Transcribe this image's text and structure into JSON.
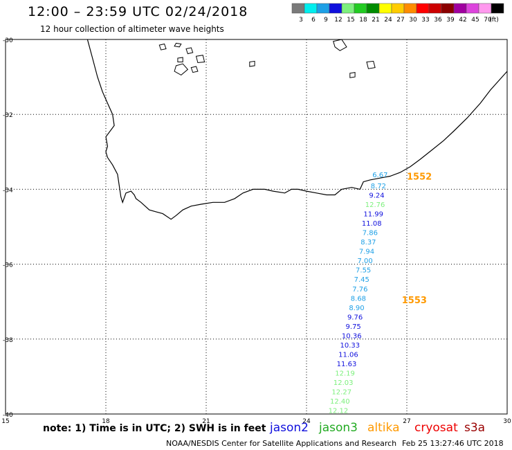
{
  "header": {
    "title": "12:00 – 23:59 UTC 02/24/2018",
    "subtitle": "12 hour collection of altimeter wave heights"
  },
  "colorbar": {
    "unit_label": "(ft)",
    "bins": [
      {
        "label": "3",
        "color": "#7a7a7a"
      },
      {
        "label": "6",
        "color": "#00eeee"
      },
      {
        "label": "9",
        "color": "#1ea0e6"
      },
      {
        "label": "12",
        "color": "#1010dd"
      },
      {
        "label": "15",
        "color": "#7df07d"
      },
      {
        "label": "18",
        "color": "#22cc22"
      },
      {
        "label": "21",
        "color": "#008c00"
      },
      {
        "label": "24",
        "color": "#ffff00"
      },
      {
        "label": "27",
        "color": "#ffcc00"
      },
      {
        "label": "30",
        "color": "#ff8c00"
      },
      {
        "label": "33",
        "color": "#ff0000"
      },
      {
        "label": "36",
        "color": "#cc0000"
      },
      {
        "label": "39",
        "color": "#8b0000"
      },
      {
        "label": "42",
        "color": "#a000a0"
      },
      {
        "label": "45",
        "color": "#dd44dd"
      },
      {
        "label": "70",
        "color": "#ff99ee"
      },
      {
        "label": "",
        "color": "#000000"
      }
    ]
  },
  "map": {
    "lon_range": [
      15,
      30
    ],
    "lat_range": [
      -40,
      -30
    ],
    "lon_ticks": [
      15,
      18,
      21,
      24,
      27,
      30
    ],
    "lat_ticks": [
      -30,
      -32,
      -34,
      -36,
      -38,
      -40
    ],
    "lon_tick_labels": [
      "15",
      "18",
      "21",
      "24",
      "27",
      "30"
    ],
    "lat_tick_labels": [
      "-30",
      "-32",
      "-34",
      "-36",
      "-38",
      "-40"
    ],
    "grid": true,
    "pass_labels": [
      {
        "text": "1552",
        "lon": 27.0,
        "lat": -33.65,
        "color": "#ff9900"
      },
      {
        "text": "1553",
        "lon": 26.85,
        "lat": -36.95,
        "color": "#ff9900"
      }
    ],
    "track": [
      {
        "lon": 26.2,
        "lat": -33.6,
        "value": "6.67",
        "color": "#1ea0e6"
      },
      {
        "lon": 26.15,
        "lat": -33.9,
        "value": "8.72",
        "color": "#1ea0e6"
      },
      {
        "lon": 26.1,
        "lat": -34.15,
        "value": "9.24",
        "color": "#1010dd"
      },
      {
        "lon": 26.05,
        "lat": -34.4,
        "value": "12.76",
        "color": "#7df07d"
      },
      {
        "lon": 26.0,
        "lat": -34.65,
        "value": "11.99",
        "color": "#1010dd"
      },
      {
        "lon": 25.95,
        "lat": -34.9,
        "value": "11.08",
        "color": "#1010dd"
      },
      {
        "lon": 25.9,
        "lat": -35.15,
        "value": "7.86",
        "color": "#1ea0e6"
      },
      {
        "lon": 25.85,
        "lat": -35.4,
        "value": "8.37",
        "color": "#1ea0e6"
      },
      {
        "lon": 25.8,
        "lat": -35.65,
        "value": "7.94",
        "color": "#1ea0e6"
      },
      {
        "lon": 25.75,
        "lat": -35.9,
        "value": "7.00",
        "color": "#1ea0e6"
      },
      {
        "lon": 25.7,
        "lat": -36.15,
        "value": "7.55",
        "color": "#1ea0e6"
      },
      {
        "lon": 25.65,
        "lat": -36.4,
        "value": "7.45",
        "color": "#1ea0e6"
      },
      {
        "lon": 25.6,
        "lat": -36.65,
        "value": "7.76",
        "color": "#1ea0e6"
      },
      {
        "lon": 25.55,
        "lat": -36.9,
        "value": "8.68",
        "color": "#1ea0e6"
      },
      {
        "lon": 25.5,
        "lat": -37.15,
        "value": "8.90",
        "color": "#1ea0e6"
      },
      {
        "lon": 25.45,
        "lat": -37.4,
        "value": "9.76",
        "color": "#1010dd"
      },
      {
        "lon": 25.4,
        "lat": -37.65,
        "value": "9.75",
        "color": "#1010dd"
      },
      {
        "lon": 25.35,
        "lat": -37.9,
        "value": "10.36",
        "color": "#1010dd"
      },
      {
        "lon": 25.3,
        "lat": -38.15,
        "value": "10.33",
        "color": "#1010dd"
      },
      {
        "lon": 25.25,
        "lat": -38.4,
        "value": "11.06",
        "color": "#1010dd"
      },
      {
        "lon": 25.2,
        "lat": -38.65,
        "value": "11.63",
        "color": "#1010dd"
      },
      {
        "lon": 25.15,
        "lat": -38.9,
        "value": "12.19",
        "color": "#7df07d"
      },
      {
        "lon": 25.1,
        "lat": -39.15,
        "value": "12.03",
        "color": "#7df07d"
      },
      {
        "lon": 25.05,
        "lat": -39.4,
        "value": "12.27",
        "color": "#7df07d"
      },
      {
        "lon": 25.0,
        "lat": -39.65,
        "value": "12.40",
        "color": "#7df07d"
      },
      {
        "lon": 24.95,
        "lat": -39.9,
        "value": "12.12",
        "color": "#7df07d"
      }
    ],
    "coastline": [
      [
        17.45,
        -30.0
      ],
      [
        17.6,
        -30.5
      ],
      [
        17.75,
        -31.0
      ],
      [
        17.9,
        -31.4
      ],
      [
        18.05,
        -31.7
      ],
      [
        18.2,
        -32.0
      ],
      [
        18.25,
        -32.3
      ],
      [
        18.0,
        -32.6
      ],
      [
        18.05,
        -32.85
      ],
      [
        18.0,
        -33.0
      ],
      [
        18.05,
        -33.15
      ],
      [
        18.2,
        -33.35
      ],
      [
        18.35,
        -33.6
      ],
      [
        18.4,
        -33.9
      ],
      [
        18.45,
        -34.2
      ],
      [
        18.5,
        -34.35
      ],
      [
        18.6,
        -34.1
      ],
      [
        18.75,
        -34.05
      ],
      [
        18.85,
        -34.15
      ],
      [
        18.9,
        -34.25
      ],
      [
        19.05,
        -34.35
      ],
      [
        19.3,
        -34.55
      ],
      [
        19.5,
        -34.6
      ],
      [
        19.7,
        -34.65
      ],
      [
        19.95,
        -34.8
      ],
      [
        20.1,
        -34.7
      ],
      [
        20.3,
        -34.55
      ],
      [
        20.55,
        -34.45
      ],
      [
        20.85,
        -34.4
      ],
      [
        21.2,
        -34.35
      ],
      [
        21.55,
        -34.35
      ],
      [
        21.85,
        -34.25
      ],
      [
        22.1,
        -34.1
      ],
      [
        22.4,
        -34.0
      ],
      [
        22.75,
        -34.0
      ],
      [
        23.0,
        -34.05
      ],
      [
        23.35,
        -34.1
      ],
      [
        23.55,
        -34.0
      ],
      [
        23.75,
        -34.0
      ],
      [
        24.0,
        -34.05
      ],
      [
        24.3,
        -34.1
      ],
      [
        24.6,
        -34.15
      ],
      [
        24.85,
        -34.15
      ],
      [
        25.05,
        -34.0
      ],
      [
        25.35,
        -33.95
      ],
      [
        25.6,
        -34.0
      ],
      [
        25.7,
        -33.8
      ],
      [
        25.9,
        -33.75
      ],
      [
        26.2,
        -33.7
      ],
      [
        26.5,
        -33.65
      ],
      [
        26.8,
        -33.55
      ],
      [
        27.1,
        -33.4
      ],
      [
        27.4,
        -33.2
      ],
      [
        27.75,
        -32.95
      ],
      [
        28.1,
        -32.7
      ],
      [
        28.4,
        -32.45
      ],
      [
        28.8,
        -32.1
      ],
      [
        29.2,
        -31.7
      ],
      [
        29.5,
        -31.35
      ],
      [
        29.75,
        -31.1
      ],
      [
        29.9,
        -30.95
      ],
      [
        30.0,
        -30.85
      ]
    ],
    "islands": [
      [
        [
          19.6,
          -30.15
        ],
        [
          19.75,
          -30.12
        ],
        [
          19.8,
          -30.25
        ],
        [
          19.65,
          -30.28
        ]
      ],
      [
        [
          20.1,
          -30.1
        ],
        [
          20.25,
          -30.12
        ],
        [
          20.2,
          -30.2
        ],
        [
          20.05,
          -30.18
        ]
      ],
      [
        [
          20.4,
          -30.25
        ],
        [
          20.55,
          -30.22
        ],
        [
          20.6,
          -30.35
        ],
        [
          20.45,
          -30.38
        ]
      ],
      [
        [
          20.7,
          -30.45
        ],
        [
          20.9,
          -30.42
        ],
        [
          20.95,
          -30.6
        ],
        [
          20.75,
          -30.62
        ]
      ],
      [
        [
          20.1,
          -30.7
        ],
        [
          20.3,
          -30.65
        ],
        [
          20.45,
          -30.8
        ],
        [
          20.25,
          -30.95
        ],
        [
          20.05,
          -30.85
        ]
      ],
      [
        [
          20.55,
          -30.75
        ],
        [
          20.7,
          -30.72
        ],
        [
          20.75,
          -30.85
        ],
        [
          20.6,
          -30.88
        ]
      ],
      [
        [
          24.8,
          -30.05
        ],
        [
          25.05,
          -30.0
        ],
        [
          25.2,
          -30.2
        ],
        [
          25.0,
          -30.3
        ],
        [
          24.85,
          -30.2
        ]
      ],
      [
        [
          22.3,
          -30.6
        ],
        [
          22.45,
          -30.58
        ],
        [
          22.45,
          -30.7
        ],
        [
          22.3,
          -30.72
        ]
      ],
      [
        [
          25.8,
          -30.6
        ],
        [
          26.0,
          -30.58
        ],
        [
          26.05,
          -30.75
        ],
        [
          25.85,
          -30.78
        ]
      ],
      [
        [
          25.3,
          -30.9
        ],
        [
          25.45,
          -30.88
        ],
        [
          25.45,
          -31.0
        ],
        [
          25.3,
          -31.02
        ]
      ],
      [
        [
          20.15,
          -30.5
        ],
        [
          20.3,
          -30.48
        ],
        [
          20.3,
          -30.6
        ],
        [
          20.15,
          -30.6
        ]
      ]
    ]
  },
  "footer": {
    "note": "note: 1) Time is in UTC; 2) SWH is in feet",
    "satellites": [
      {
        "name": "jason2",
        "color": "#1010dd"
      },
      {
        "name": "jason3",
        "color": "#22aa22"
      },
      {
        "name": "altika",
        "color": "#ff9900"
      },
      {
        "name": "cryosat",
        "color": "#ee0000"
      },
      {
        "name": "s3a",
        "color": "#990000"
      }
    ],
    "credit": "NOAA/NESDIS Center for Satellite Applications and Research",
    "timestamp": "Feb 25 13:27:46 UTC 2018"
  }
}
